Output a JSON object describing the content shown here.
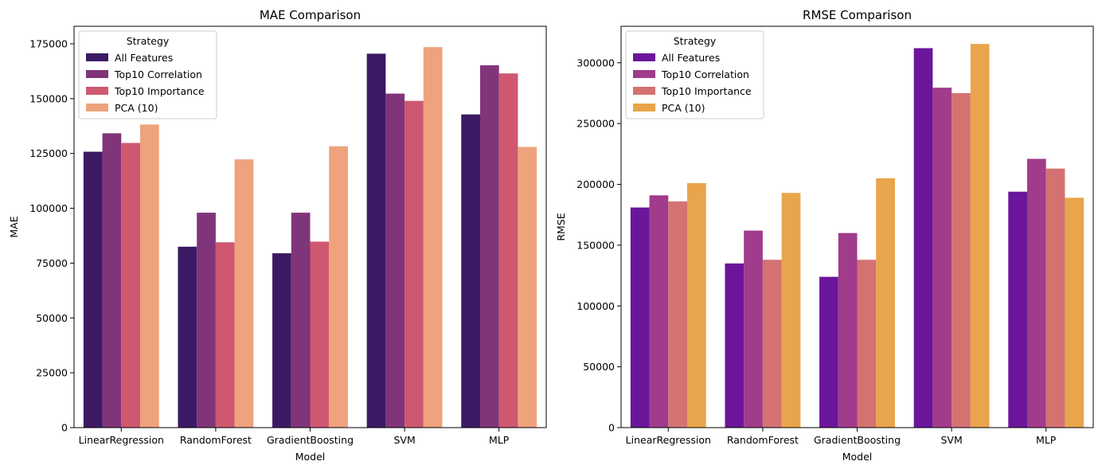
{
  "legend_title": "Strategy",
  "chart_data": [
    {
      "type": "bar",
      "title": "MAE Comparison",
      "xlabel": "Model",
      "ylabel": "MAE",
      "ylim": [
        0,
        183000
      ],
      "yticks": [
        0,
        25000,
        50000,
        75000,
        100000,
        125000,
        150000,
        175000
      ],
      "legend_position": "top-left",
      "legend_title": "Strategy",
      "categories": [
        "LinearRegression",
        "RandomForest",
        "GradientBoosting",
        "SVM",
        "MLP"
      ],
      "series": [
        {
          "name": "All Features",
          "color": "#3b1a63",
          "values": [
            125800,
            82500,
            79500,
            170500,
            142800
          ]
        },
        {
          "name": "Top10 Correlation",
          "color": "#80357a",
          "values": [
            134200,
            98000,
            98000,
            152300,
            165200
          ]
        },
        {
          "name": "Top10 Importance",
          "color": "#cf5870",
          "values": [
            129800,
            84500,
            84800,
            149000,
            161500
          ]
        },
        {
          "name": "PCA (10)",
          "color": "#eea37d",
          "values": [
            138200,
            122300,
            128300,
            173500,
            128000
          ]
        }
      ]
    },
    {
      "type": "bar",
      "title": "RMSE Comparison",
      "xlabel": "Model",
      "ylabel": "RMSE",
      "ylim": [
        0,
        330000
      ],
      "yticks": [
        0,
        50000,
        100000,
        150000,
        200000,
        250000,
        300000
      ],
      "legend_position": "top-left",
      "legend_title": "Strategy",
      "categories": [
        "LinearRegression",
        "RandomForest",
        "GradientBoosting",
        "SVM",
        "MLP"
      ],
      "series": [
        {
          "name": "All Features",
          "color": "#6a159a",
          "values": [
            181000,
            135000,
            124000,
            312000,
            194000
          ]
        },
        {
          "name": "Top10 Correlation",
          "color": "#a13b8b",
          "values": [
            191000,
            162000,
            160000,
            279500,
            221000
          ]
        },
        {
          "name": "Top10 Importance",
          "color": "#d47272",
          "values": [
            186000,
            138000,
            138000,
            275000,
            213000
          ]
        },
        {
          "name": "PCA (10)",
          "color": "#e9a54b",
          "values": [
            201000,
            193000,
            205000,
            315500,
            189000
          ]
        }
      ]
    }
  ]
}
